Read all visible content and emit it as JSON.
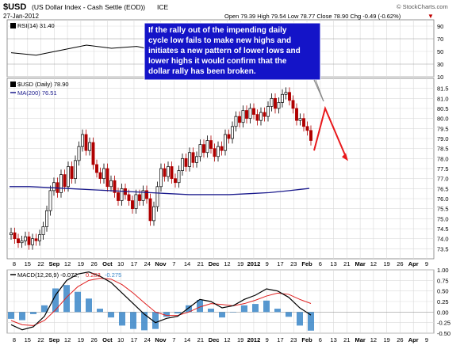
{
  "header": {
    "symbol": "$USD",
    "description": "(US Dollar Index - Cash Settle (EOD))",
    "exchange": "ICE",
    "date": "27-Jan-2012",
    "ohlc": "Open 79.39  High 79.54  Low 78.77  Close 78.90  Chg -0.49 (-0.62%)",
    "ohlc_arrow": "▼",
    "watermark": "© StockCharts.com"
  },
  "annotation": {
    "lines": [
      "If the rally out of the impending daily",
      "cycle low fails to make new highs and",
      "initiates a new pattern of lower lows and",
      "lower highs it would confirm that the",
      "dollar rally has been broken."
    ]
  },
  "colors": {
    "grid": "#d9d9d9",
    "up_candle": "#000000",
    "down_candle": "#b00000",
    "ma200": "#1a1a8c",
    "rsi_line": "#000000",
    "macd_line": "#000000",
    "signal_line": "#e02020",
    "histogram": "#3a86c8",
    "projection": "#e8191c",
    "annotation_text": "#ffffff",
    "annotation_bg": "#1414c8"
  },
  "chart_data": [
    {
      "type": "line",
      "panel": "RSI",
      "legend": "RSI(14) 31.40",
      "ylim": [
        10,
        100
      ],
      "y_ticks": [
        "90",
        "70",
        "50",
        "30",
        "10"
      ],
      "x": [
        0,
        10,
        20,
        30,
        40,
        50,
        60,
        70,
        80,
        90,
        100,
        110,
        118
      ],
      "values": [
        48,
        44,
        52,
        60,
        55,
        58,
        50,
        62,
        65,
        60,
        68,
        50,
        31.4
      ]
    },
    {
      "type": "candlestick",
      "panel": "Price",
      "legend_price": "$USD (Daily) 78.90",
      "legend_ma": "MA(200) 76.51",
      "ylim": [
        73.0,
        82.0
      ],
      "y_ticks": [
        "81.5",
        "81.0",
        "80.5",
        "80.0",
        "79.5",
        "79.0",
        "78.5",
        "78.0",
        "77.5",
        "77.0",
        "76.5",
        "76.0",
        "75.5",
        "75.0",
        "74.5",
        "74.0",
        "73.5"
      ],
      "x_tick_labels": [
        "8",
        "15",
        "22",
        "Sep",
        "12",
        "19",
        "26",
        "Oct",
        "10",
        "17",
        "24",
        "Nov",
        "7",
        "14",
        "21",
        "Dec",
        "12",
        "19",
        "2012",
        "9",
        "17",
        "23",
        "Feb",
        "6",
        "13",
        "21",
        "Mar",
        "12",
        "19",
        "26",
        "Apr",
        "9"
      ],
      "x_tick_months": [
        "Sep",
        "Oct",
        "Nov",
        "Dec",
        "2012",
        "Feb",
        "Mar",
        "Apr"
      ],
      "close_series": [
        74.3,
        74.0,
        73.8,
        73.9,
        74.1,
        73.7,
        74.0,
        73.9,
        74.2,
        74.6,
        75.4,
        76.4,
        76.8,
        76.3,
        77.2,
        76.6,
        77.6,
        77.0,
        77.9,
        78.6,
        79.2,
        78.4,
        78.8,
        77.7,
        77.3,
        77.0,
        77.5,
        76.6,
        76.9,
        76.3,
        75.9,
        76.5,
        76.2,
        75.9,
        75.5,
        76.2,
        75.9,
        76.4,
        76.0,
        74.9,
        75.6,
        76.6,
        77.5,
        77.1,
        77.6,
        77.0,
        76.8,
        77.4,
        78.0,
        77.6,
        78.3,
        77.8,
        78.1,
        78.7,
        78.3,
        78.9,
        78.5,
        78.1,
        78.6,
        78.4,
        79.2,
        79.0,
        79.6,
        80.1,
        79.8,
        80.4,
        80.0,
        80.5,
        80.2,
        79.9,
        80.3,
        80.1,
        80.6,
        81.0,
        80.5,
        80.8,
        81.2,
        81.3,
        80.9,
        80.5,
        79.9,
        80.0,
        79.6,
        79.4,
        78.9
      ],
      "ma200": [
        76.6,
        76.6,
        76.55,
        76.5,
        76.45,
        76.4,
        76.35,
        76.3,
        76.25,
        76.2,
        76.2,
        76.2,
        76.25,
        76.3,
        76.4,
        76.51
      ],
      "projection": [
        [
          78.4,
          80.5
        ],
        [
          80.5,
          80.3
        ],
        [
          80.3,
          78.0
        ]
      ]
    },
    {
      "type": "line",
      "panel": "MACD",
      "legend_macd": "MACD(12,26,9) -0.072,",
      "legend_signal": "0.203",
      "legend_hist": "-0.275",
      "ylim": [
        -0.5,
        1.0
      ],
      "y_ticks": [
        "1.00",
        "0.75",
        "0.50",
        "0.25",
        "0.00",
        "-0.25",
        "-0.50"
      ],
      "macd": [
        -0.3,
        -0.42,
        -0.35,
        -0.1,
        0.4,
        0.75,
        0.9,
        0.95,
        0.85,
        0.7,
        0.45,
        0.2,
        -0.05,
        -0.25,
        -0.15,
        -0.1,
        0.1,
        0.3,
        0.25,
        0.1,
        0.15,
        0.3,
        0.4,
        0.55,
        0.5,
        0.35,
        0.1,
        -0.072
      ],
      "signal": [
        -0.2,
        -0.3,
        -0.32,
        -0.2,
        0.05,
        0.35,
        0.6,
        0.75,
        0.8,
        0.78,
        0.65,
        0.45,
        0.22,
        0.0,
        -0.08,
        -0.08,
        0.0,
        0.12,
        0.2,
        0.18,
        0.15,
        0.2,
        0.28,
        0.38,
        0.45,
        0.42,
        0.3,
        0.203
      ]
    }
  ]
}
